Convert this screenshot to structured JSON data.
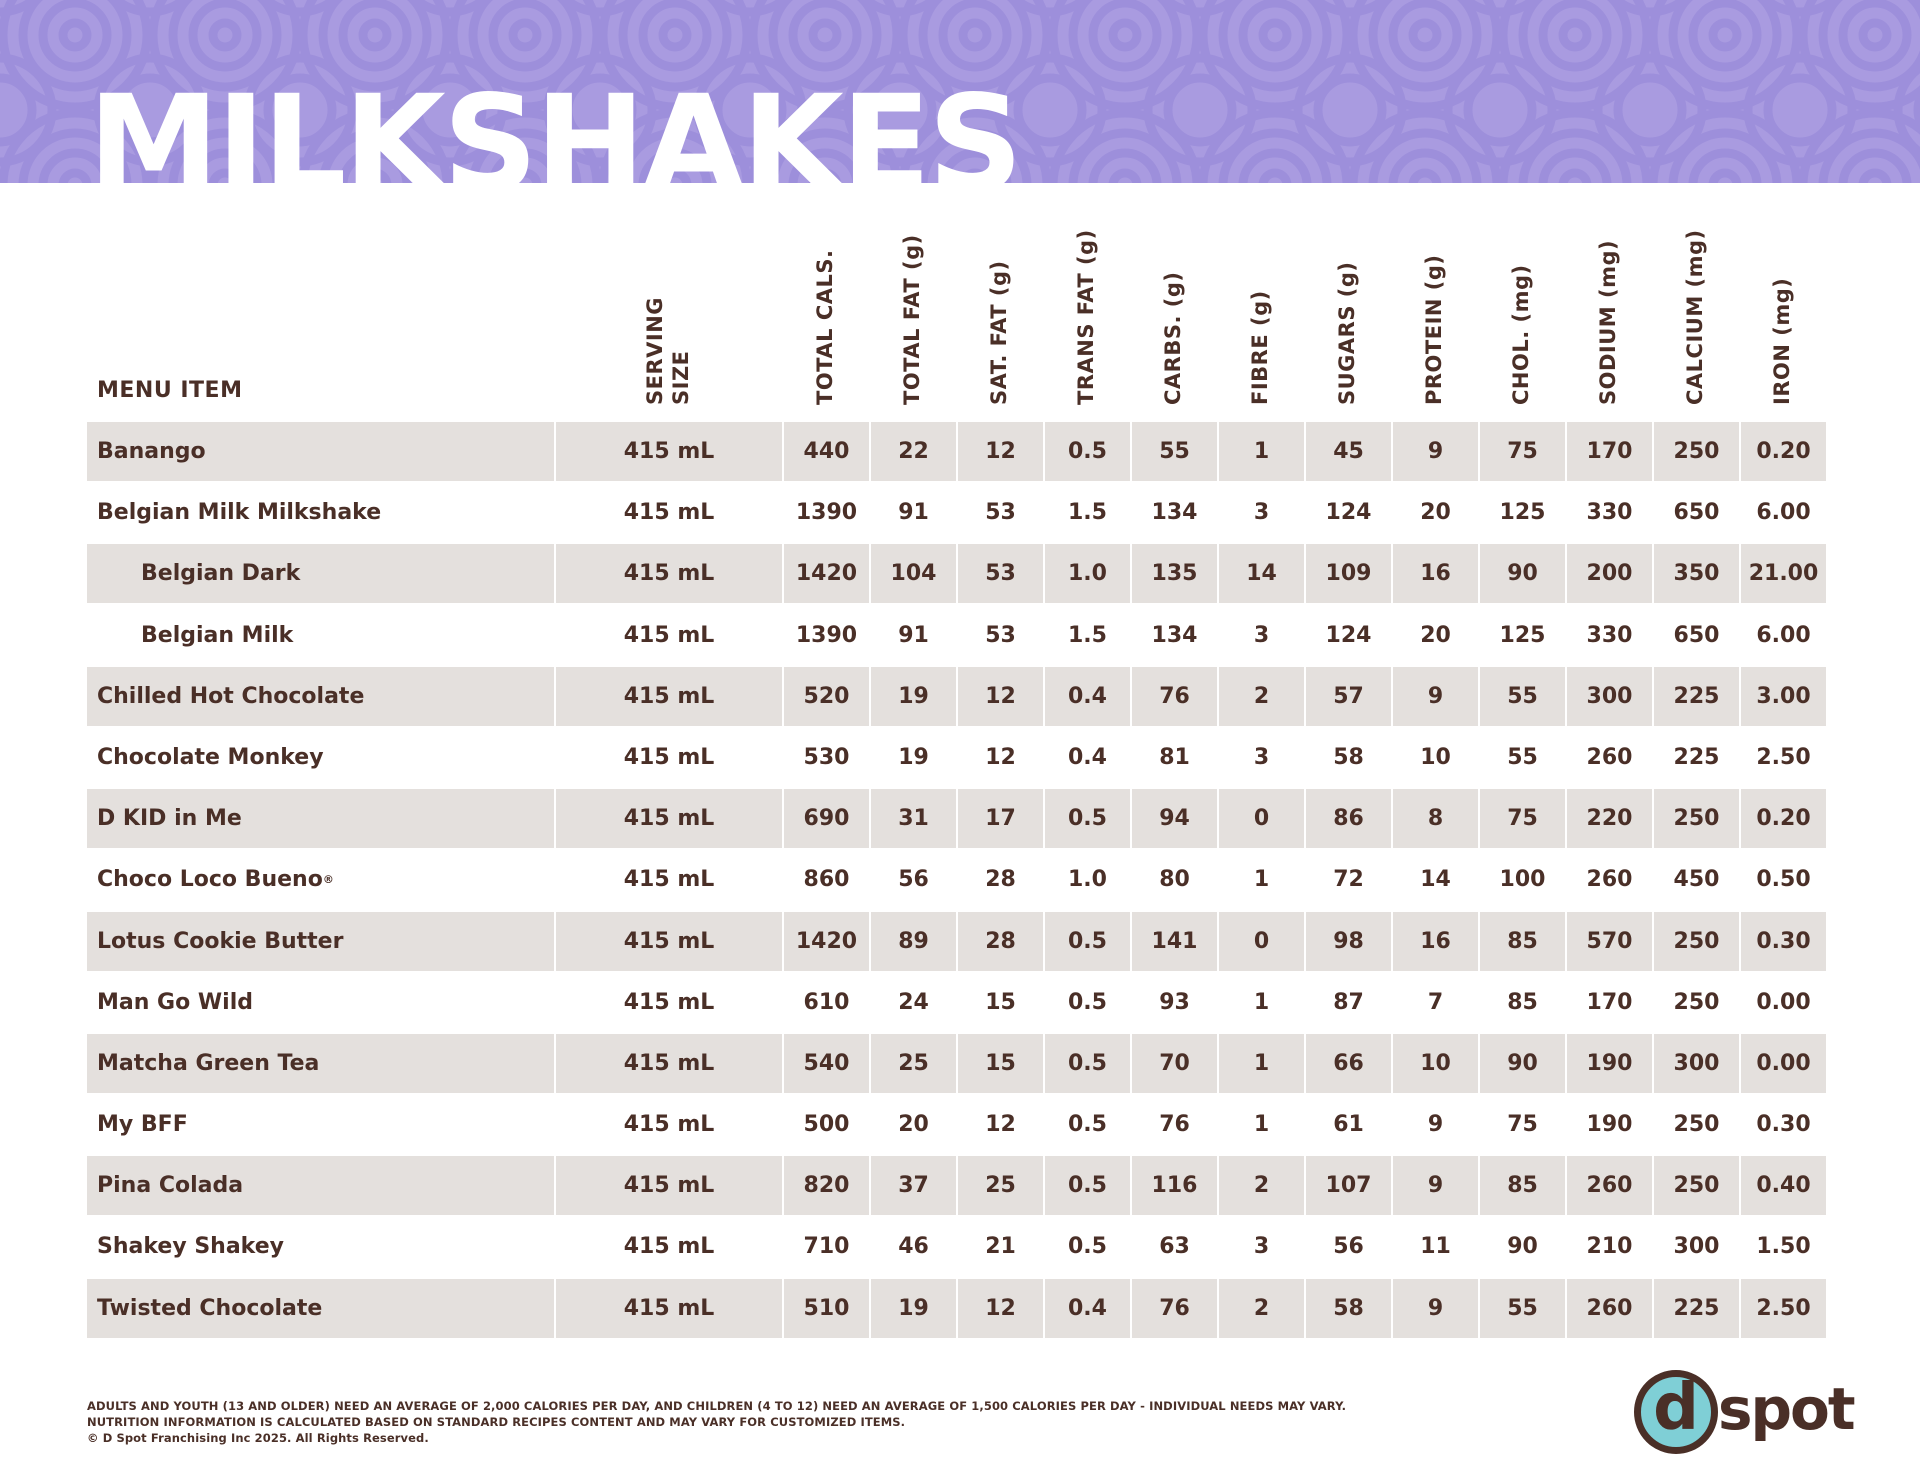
{
  "page": {
    "title": "MILKSHAKES"
  },
  "columns": {
    "menu_item": "MENU ITEM",
    "serving_size_line1": "SERVING",
    "serving_size_line2": "SIZE",
    "nutrients": [
      "TOTAL CALS.",
      "TOTAL FAT (g)",
      "SAT. FAT (g)",
      "TRANS FAT (g)",
      "CARBS. (g)",
      "FIBRE (g)",
      "SUGARS (g)",
      "PROTEIN (g)",
      "CHOL. (mg)",
      "SODIUM (mg)",
      "CALCIUM (mg)",
      "IRON (mg)"
    ]
  },
  "rows": [
    {
      "name": "Banango",
      "serving": "415 mL",
      "values": [
        "440",
        "22",
        "12",
        "0.5",
        "55",
        "1",
        "45",
        "9",
        "75",
        "170",
        "250",
        "0.20"
      ]
    },
    {
      "name": "Belgian Milk Milkshake",
      "serving": "415 mL",
      "values": [
        "1390",
        "91",
        "53",
        "1.5",
        "134",
        "3",
        "124",
        "20",
        "125",
        "330",
        "650",
        "6.00"
      ]
    },
    {
      "name": "Belgian Dark",
      "indent": true,
      "serving": "415 mL",
      "values": [
        "1420",
        "104",
        "53",
        "1.0",
        "135",
        "14",
        "109",
        "16",
        "90",
        "200",
        "350",
        "21.00"
      ]
    },
    {
      "name": "Belgian Milk",
      "indent": true,
      "serving": "415 mL",
      "values": [
        "1390",
        "91",
        "53",
        "1.5",
        "134",
        "3",
        "124",
        "20",
        "125",
        "330",
        "650",
        "6.00"
      ]
    },
    {
      "name": "Chilled Hot Chocolate",
      "serving": "415 mL",
      "values": [
        "520",
        "19",
        "12",
        "0.4",
        "76",
        "2",
        "57",
        "9",
        "55",
        "300",
        "225",
        "3.00"
      ]
    },
    {
      "name": "Chocolate Monkey",
      "serving": "415 mL",
      "values": [
        "530",
        "19",
        "12",
        "0.4",
        "81",
        "3",
        "58",
        "10",
        "55",
        "260",
        "225",
        "2.50"
      ]
    },
    {
      "name": "D KID in Me",
      "serving": "415 mL",
      "values": [
        "690",
        "31",
        "17",
        "0.5",
        "94",
        "0",
        "86",
        "8",
        "75",
        "220",
        "250",
        "0.20"
      ]
    },
    {
      "name": "Choco Loco Bueno",
      "sup": "®",
      "serving": "415 mL",
      "values": [
        "860",
        "56",
        "28",
        "1.0",
        "80",
        "1",
        "72",
        "14",
        "100",
        "260",
        "450",
        "0.50"
      ]
    },
    {
      "name": "Lotus Cookie Butter",
      "serving": "415 mL",
      "values": [
        "1420",
        "89",
        "28",
        "0.5",
        "141",
        "0",
        "98",
        "16",
        "85",
        "570",
        "250",
        "0.30"
      ]
    },
    {
      "name": "Man Go Wild",
      "serving": "415 mL",
      "values": [
        "610",
        "24",
        "15",
        "0.5",
        "93",
        "1",
        "87",
        "7",
        "85",
        "170",
        "250",
        "0.00"
      ]
    },
    {
      "name": "Matcha Green Tea",
      "serving": "415 mL",
      "values": [
        "540",
        "25",
        "15",
        "0.5",
        "70",
        "1",
        "66",
        "10",
        "90",
        "190",
        "300",
        "0.00"
      ]
    },
    {
      "name": "My BFF",
      "serving": "415 mL",
      "values": [
        "500",
        "20",
        "12",
        "0.5",
        "76",
        "1",
        "61",
        "9",
        "75",
        "190",
        "250",
        "0.30"
      ]
    },
    {
      "name": "Pina Colada",
      "serving": "415 mL",
      "values": [
        "820",
        "37",
        "25",
        "0.5",
        "116",
        "2",
        "107",
        "9",
        "85",
        "260",
        "250",
        "0.40"
      ]
    },
    {
      "name": "Shakey Shakey",
      "serving": "415 mL",
      "values": [
        "710",
        "46",
        "21",
        "0.5",
        "63",
        "3",
        "56",
        "11",
        "90",
        "210",
        "300",
        "1.50"
      ]
    },
    {
      "name": "Twisted Chocolate",
      "serving": "415 mL",
      "values": [
        "510",
        "19",
        "12",
        "0.4",
        "76",
        "2",
        "58",
        "9",
        "55",
        "260",
        "225",
        "2.50"
      ]
    }
  ],
  "footer": {
    "line1": "ADULTS AND YOUTH (13 AND OLDER) NEED AN AVERAGE OF 2,000 CALORIES PER DAY, AND CHILDREN (4 TO 12) NEED AN AVERAGE OF 1,500 CALORIES PER DAY - INDIVIDUAL NEEDS MAY VARY.",
    "line2": "NUTRITION INFORMATION IS CALCULATED BASED ON STANDARD RECIPES CONTENT AND MAY VARY FOR CUSTOMIZED ITEMS.",
    "line3": "© D Spot Franchising Inc 2025. All Rights Reserved."
  },
  "logo": {
    "letter": "d",
    "word": "spot"
  },
  "colors": {
    "banner": "#a99be0",
    "row_shade": "#e4e0dd",
    "text": "#4a2f27",
    "logo_circle": "#7fcfd6"
  }
}
